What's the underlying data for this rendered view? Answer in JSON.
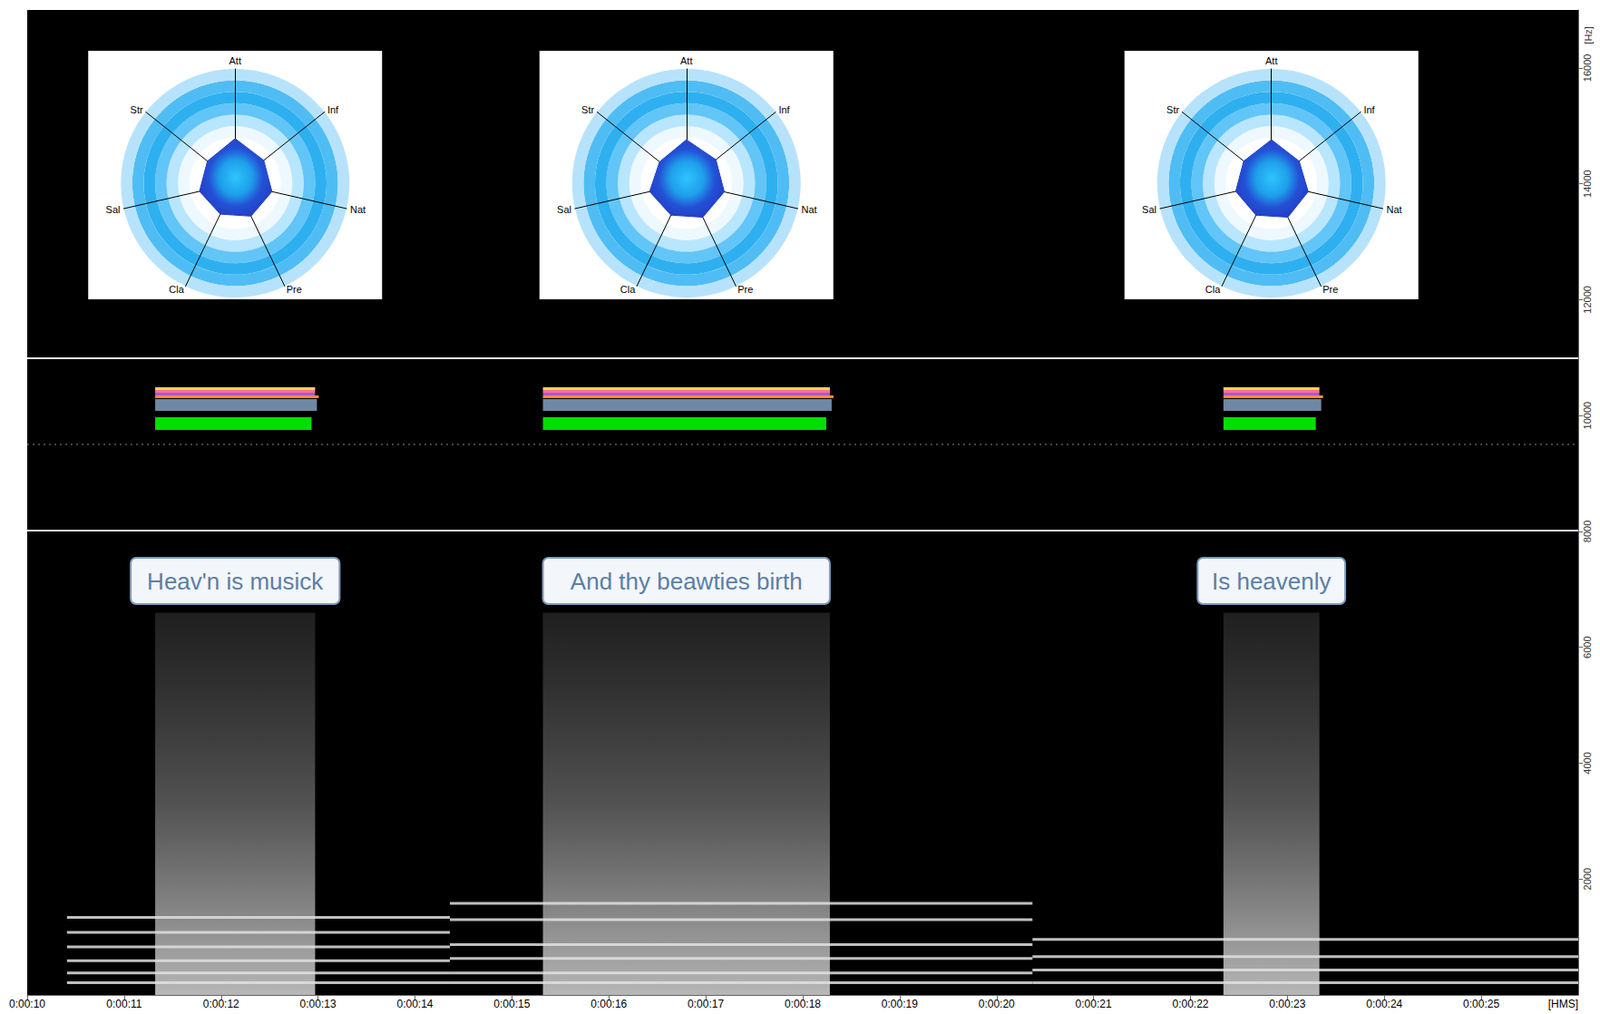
{
  "chart_data": {
    "type": "spectrogram",
    "x_label": "[HMS]",
    "y_label": "[Hz]",
    "grid": false,
    "xlim": [
      10,
      26
    ],
    "xticks": [
      {
        "value": 10,
        "label": "0:00:10"
      },
      {
        "value": 11,
        "label": "0:00:11"
      },
      {
        "value": 12,
        "label": "0:00:12"
      },
      {
        "value": 13,
        "label": "0:00:13"
      },
      {
        "value": 14,
        "label": "0:00:14"
      },
      {
        "value": 15,
        "label": "0:00:15"
      },
      {
        "value": 16,
        "label": "0:00:16"
      },
      {
        "value": 17,
        "label": "0:00:17"
      },
      {
        "value": 18,
        "label": "0:00:18"
      },
      {
        "value": 19,
        "label": "0:00:19"
      },
      {
        "value": 20,
        "label": "0:00:20"
      },
      {
        "value": 21,
        "label": "0:00:21"
      },
      {
        "value": 22,
        "label": "0:00:22"
      },
      {
        "value": 23,
        "label": "0:00:23"
      },
      {
        "value": 24,
        "label": "0:00:24"
      },
      {
        "value": 25,
        "label": "0:00:25"
      }
    ],
    "ylim": [
      0,
      17000
    ],
    "yticks": [
      2000,
      4000,
      6000,
      8000,
      10000,
      12000,
      14000,
      16000
    ],
    "radar_axes": [
      "Att",
      "Str",
      "Sal",
      "Cla",
      "Pre",
      "Nat",
      "Inf"
    ],
    "radar_range": [
      0,
      1
    ],
    "segments": [
      {
        "start": 11.32,
        "end": 12.97,
        "label": "Heav'n is musick",
        "fmax": 6600,
        "radar": [
          0.39,
          0.31,
          0.32,
          0.3,
          0.32,
          0.33,
          0.32
        ]
      },
      {
        "start": 15.32,
        "end": 18.28,
        "label": "And thy beawties birth",
        "fmax": 6600,
        "radar": [
          0.38,
          0.3,
          0.33,
          0.31,
          0.33,
          0.34,
          0.33
        ]
      },
      {
        "start": 22.34,
        "end": 23.33,
        "label": "Is heavenly",
        "fmax": 6600,
        "radar": [
          0.38,
          0.31,
          0.32,
          0.31,
          0.33,
          0.33,
          0.31
        ]
      }
    ],
    "tones": [
      {
        "start": 10.41,
        "end": 14.36,
        "freq": [
          1340,
          1080,
          830,
          590,
          380,
          210
        ]
      },
      {
        "start": 14.36,
        "end": 20.37,
        "freq": [
          1580,
          1300,
          870,
          630,
          380,
          210
        ]
      },
      {
        "start": 20.37,
        "end": 26,
        "freq": [
          960,
          660,
          430,
          210
        ]
      }
    ]
  }
}
